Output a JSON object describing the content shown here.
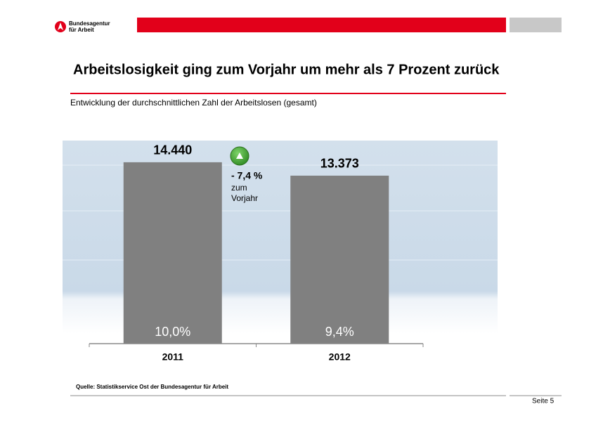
{
  "header": {
    "logo": [
      "Bundesagentur",
      "für Arbeit"
    ]
  },
  "chart_data": {
    "type": "bar",
    "title": "Arbeitslosigkeit ging zum Vorjahr um  mehr als 7 Prozent zurück",
    "subtitle": "Entwicklung der durchschnittlichen Zahl der Arbeitslosen (gesamt)",
    "categories": [
      "2011",
      "2012"
    ],
    "values": [
      14440,
      13373
    ],
    "value_labels": [
      "14.440",
      "13.373"
    ],
    "inner_labels": [
      "10,0%",
      "9,4%"
    ],
    "color": "#808080",
    "ylim": [
      0,
      16000
    ],
    "annotation": {
      "change": "- 7,4 %",
      "note": [
        "zum",
        "Vorjahr"
      ]
    }
  },
  "footer": {
    "source": "Quelle: Statistikservice Ost der Bundesagentur für Arbeit",
    "page": "Seite 5"
  }
}
